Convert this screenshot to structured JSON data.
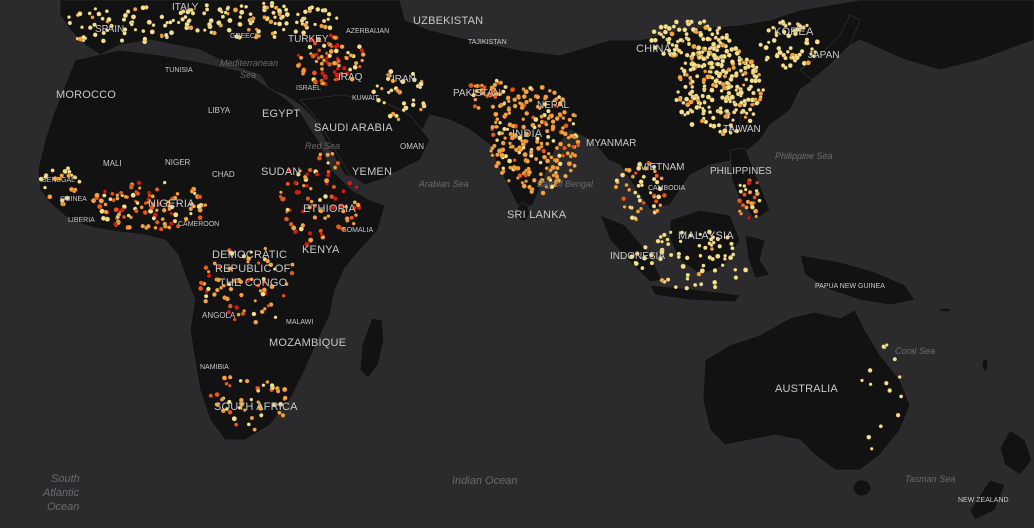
{
  "colors": {
    "ocean": "#2b2b2d",
    "land": "#121212",
    "border": "#2f2f2f",
    "low": "#f7e08a",
    "mid": "#f7a23a",
    "high": "#e85a1c",
    "very_high": "#d61a0f"
  },
  "labels": {
    "spain": "SPAIN",
    "italy": "ITALY",
    "greece": "GREECE",
    "turkey": "TURKEY",
    "azerbaijan": "AZERBAIJAN",
    "uzbekistan": "UZBEKISTAN",
    "tajikistan": "TAJIKISTAN",
    "china": "CHINA",
    "korea": "KOREA",
    "japan": "JAPAN",
    "morocco": "MOROCCO",
    "tunisia": "TUNISIA",
    "libya": "LIBYA",
    "egypt": "EGYPT",
    "israel": "ISRAEL",
    "iraq": "IRAQ",
    "iran": "IRAN",
    "kuwait": "KUWAIT",
    "saudi_arabia": "SAUDI ARABIA",
    "oman": "OMAN",
    "pakistan": "PAKISTAN",
    "nepal": "NEPAL",
    "india": "INDIA",
    "taiwan": "TAIWAN",
    "myanmar": "MYANMAR",
    "vietnam": "VIETNAM",
    "cambodia": "CAMBODIA",
    "philippines": "PHILIPPINES",
    "mali": "MALI",
    "niger": "NIGER",
    "chad": "CHAD",
    "sudan": "SUDAN",
    "yemen": "YEMEN",
    "senegal": "SENEGAL",
    "guinea": "GUINEA",
    "liberia": "LIBERIA",
    "nigeria": "NIGERIA",
    "cameroon": "CAMEROON",
    "ethiopia": "ETHIOPIA",
    "somalia": "SOMALIA",
    "kenya": "KENYA",
    "drc_1": "DEMOCRATIC",
    "drc_2": "REPUBLIC OF",
    "drc_3": "THE CONGO",
    "sri_lanka": "SRI LANKA",
    "malaysia": "MALAYSIA",
    "indonesia": "INDONESIA",
    "papua_new_guinea": "PAPUA NEW GUINEA",
    "angola": "ANGOLA",
    "malawi": "MALAWI",
    "mozambique": "MOZAMBIQUE",
    "namibia": "NAMIBIA",
    "south_africa": "SOUTH AFRICA",
    "australia": "AUSTRALIA",
    "new_zealand": "NEW ZEALAND"
  },
  "seas": {
    "mediterranean_1": "Mediterranean",
    "mediterranean_2": "Sea",
    "red_sea": "Red Sea",
    "arabian_sea": "Arabian Sea",
    "bay_of_bengal": "Bay of Bengal",
    "philippine_sea": "Philippine Sea",
    "coral_sea": "Coral Sea",
    "indian_ocean": "Indian Ocean",
    "south_atlantic_1": "South",
    "south_atlantic_2": "Atlantic",
    "south_atlantic_3": "Ocean",
    "tasman_sea": "Tasman Sea"
  }
}
